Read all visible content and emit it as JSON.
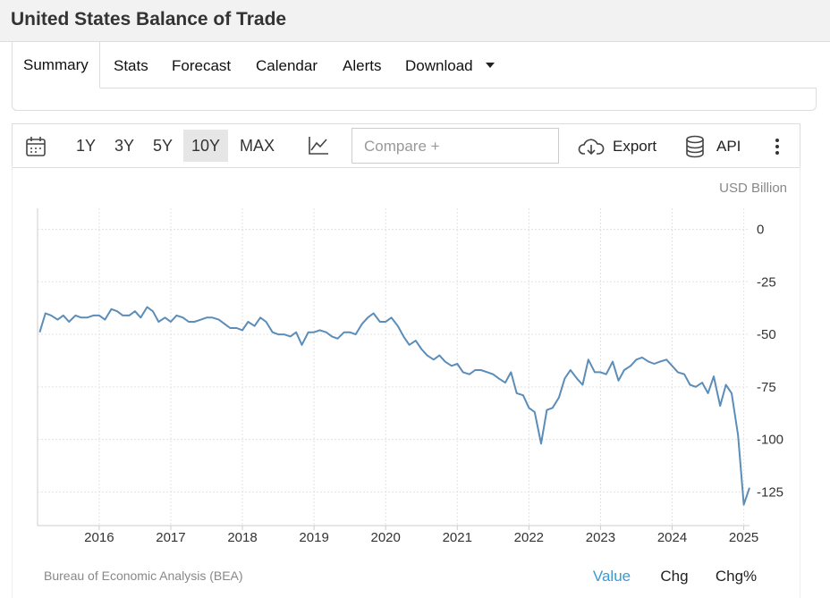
{
  "header": {
    "title": "United States Balance of Trade"
  },
  "tabs": [
    "Summary",
    "Stats",
    "Forecast",
    "Calendar",
    "Alerts",
    "Download"
  ],
  "toolbar": {
    "ranges": [
      "1Y",
      "3Y",
      "5Y",
      "10Y",
      "MAX"
    ],
    "compare": "Compare +",
    "export": "Export",
    "api": "API"
  },
  "unit_label": "USD Billion",
  "source": "Bureau of Economic Analysis (BEA)",
  "views": [
    "Value",
    "Chg",
    "Chg%"
  ],
  "chart_data": {
    "type": "line",
    "color": "#5b8db8",
    "grid": true,
    "xlim": [
      2015.14,
      2025.08
    ],
    "xticks": [
      2016,
      2017,
      2018,
      2019,
      2020,
      2021,
      2022,
      2023,
      2024,
      2025
    ],
    "ylim": [
      -141,
      10
    ],
    "yticks": [
      0,
      -25,
      -50,
      -75,
      -100,
      -125
    ],
    "series": [
      {
        "name": "Balance of Trade",
        "color": "#5b8db8",
        "x": [
          2015.17,
          2015.25,
          2015.33,
          2015.42,
          2015.5,
          2015.58,
          2015.67,
          2015.75,
          2015.83,
          2015.92,
          2016,
          2016.08,
          2016.17,
          2016.25,
          2016.33,
          2016.42,
          2016.5,
          2016.58,
          2016.67,
          2016.75,
          2016.83,
          2016.92,
          2017,
          2017.08,
          2017.17,
          2017.25,
          2017.33,
          2017.42,
          2017.5,
          2017.58,
          2017.67,
          2017.75,
          2017.83,
          2017.92,
          2018,
          2018.08,
          2018.17,
          2018.25,
          2018.33,
          2018.42,
          2018.5,
          2018.58,
          2018.67,
          2018.75,
          2018.83,
          2018.92,
          2019,
          2019.08,
          2019.17,
          2019.25,
          2019.33,
          2019.42,
          2019.5,
          2019.58,
          2019.67,
          2019.75,
          2019.83,
          2019.92,
          2020,
          2020.08,
          2020.17,
          2020.25,
          2020.33,
          2020.42,
          2020.5,
          2020.58,
          2020.67,
          2020.75,
          2020.83,
          2020.92,
          2021,
          2021.08,
          2021.17,
          2021.25,
          2021.33,
          2021.42,
          2021.5,
          2021.58,
          2021.67,
          2021.75,
          2021.83,
          2021.92,
          2022,
          2022.08,
          2022.17,
          2022.25,
          2022.33,
          2022.42,
          2022.5,
          2022.58,
          2022.67,
          2022.75,
          2022.83,
          2022.92,
          2023,
          2023.08,
          2023.17,
          2023.25,
          2023.33,
          2023.42,
          2023.5,
          2023.58,
          2023.67,
          2023.75,
          2023.83,
          2023.92,
          2024,
          2024.08,
          2024.17,
          2024.25,
          2024.33,
          2024.42,
          2024.5,
          2024.58,
          2024.67,
          2024.75,
          2024.83,
          2024.92,
          2025,
          2025.08
        ],
        "values": [
          -49,
          -40,
          -41,
          -43,
          -41,
          -44,
          -41,
          -42,
          -42,
          -41,
          -41,
          -43,
          -38,
          -39,
          -41,
          -41,
          -39,
          -42,
          -37,
          -39,
          -44,
          -42,
          -44,
          -41,
          -42,
          -44,
          -44,
          -43,
          -42,
          -42,
          -43,
          -45,
          -47,
          -47,
          -48,
          -44,
          -46,
          -42,
          -44,
          -49,
          -50,
          -50,
          -51,
          -49,
          -55,
          -49,
          -49,
          -48,
          -49,
          -51,
          -52,
          -49,
          -49,
          -50,
          -45,
          -42,
          -40,
          -44,
          -44,
          -42,
          -46,
          -51,
          -55,
          -53,
          -57,
          -60,
          -62,
          -60,
          -63,
          -65,
          -64,
          -68,
          -69,
          -67,
          -67,
          -68,
          -69,
          -71,
          -73,
          -68,
          -78,
          -79,
          -85,
          -87,
          -102,
          -86,
          -85,
          -80,
          -71,
          -67,
          -71,
          -74,
          -62,
          -68,
          -68,
          -69,
          -63,
          -72,
          -67,
          -65,
          -62,
          -61,
          -63,
          -64,
          -63,
          -62,
          -65,
          -68,
          -69,
          -74,
          -75,
          -73,
          -78,
          -70,
          -84,
          -74,
          -78,
          -98,
          -131,
          -123
        ]
      }
    ]
  }
}
